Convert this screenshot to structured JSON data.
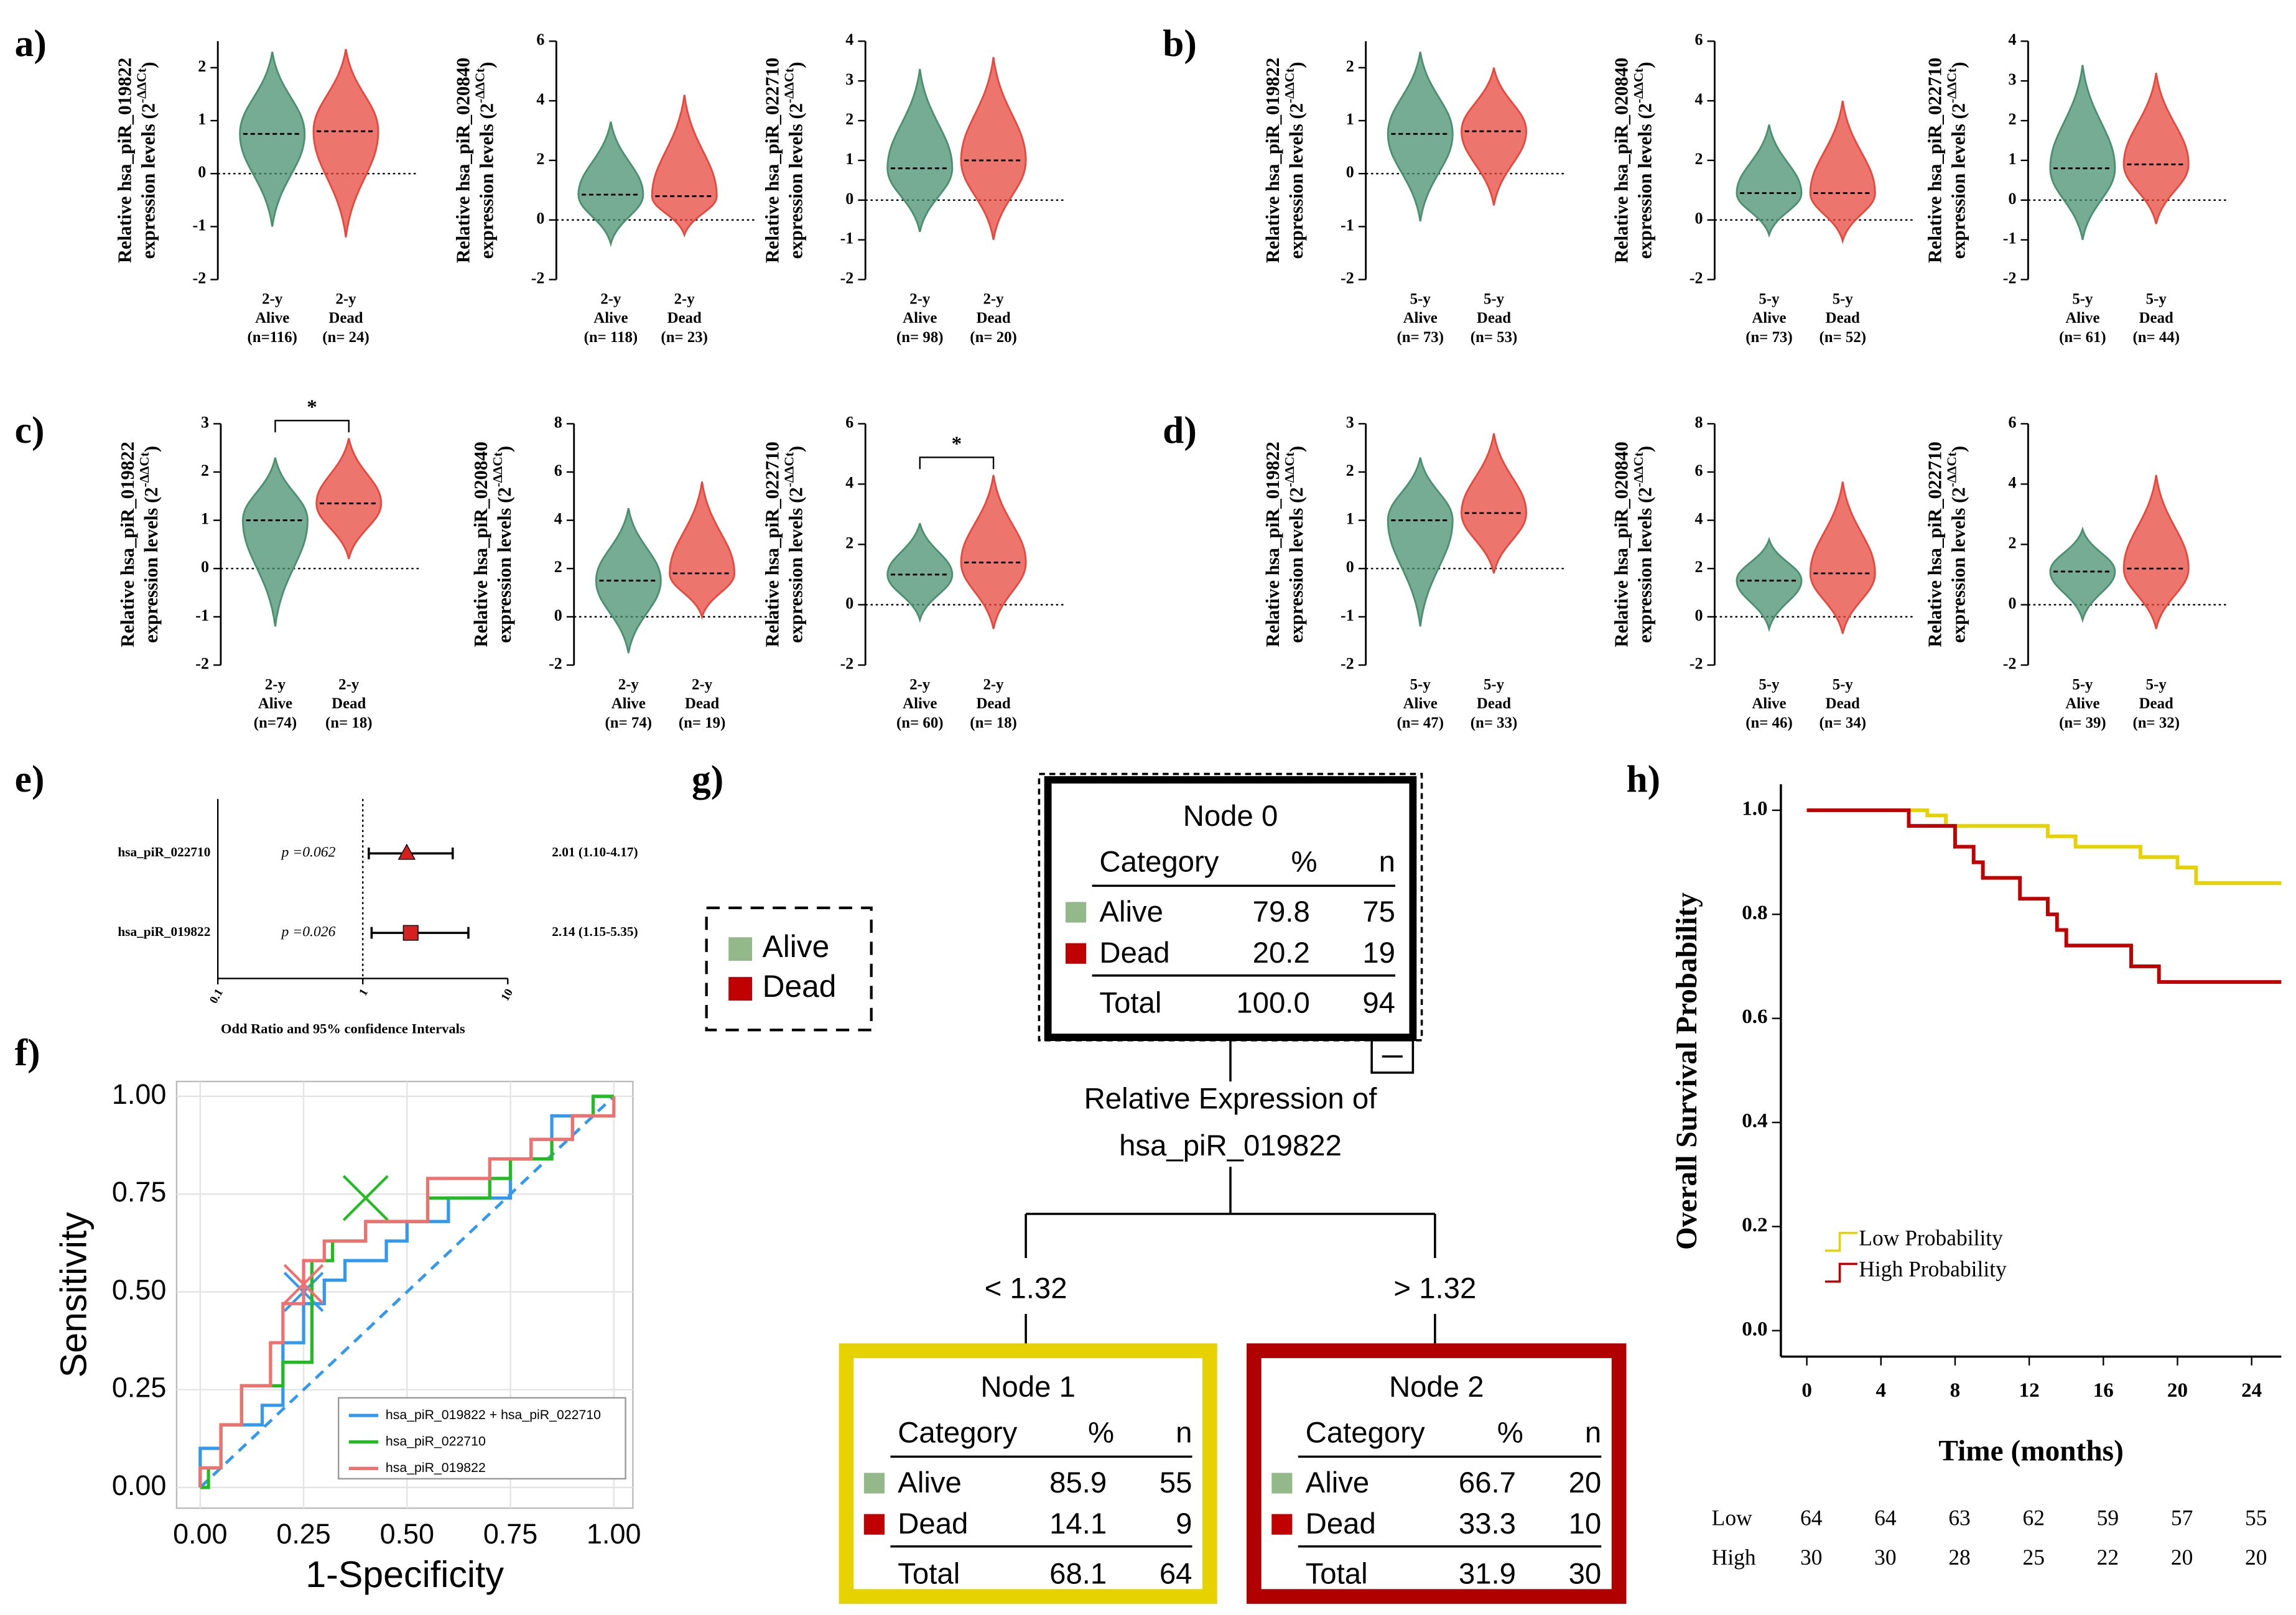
{
  "panel_labels": [
    "a)",
    "b)",
    "c)",
    "d)",
    "e)",
    "f)",
    "g)",
    "h)"
  ],
  "chart_data": [
    {
      "type": "violin",
      "ylabel": [
        "Relative hsa_piR_019822",
        "expression levels (2",
        "-ΔΔCt",
        ")"
      ],
      "ylim": [
        -2,
        2.5
      ],
      "yticks": [
        -2,
        -1,
        0,
        1,
        2
      ],
      "categories": [
        [
          "2-y",
          "Alive",
          "(n=116)"
        ],
        [
          "2-y",
          "Dead",
          "(n= 24)"
        ]
      ],
      "colors": [
        "#4a9070",
        "#e5483c"
      ],
      "median": [
        0.75,
        0.8
      ],
      "min": [
        -1,
        -1.2
      ],
      "max": [
        2.3,
        2.35
      ]
    },
    {
      "type": "violin",
      "ylabel": [
        "Relative hsa_piR_020840",
        "expression levels (2",
        "-ΔΔCt",
        ")"
      ],
      "ylim": [
        -2,
        6
      ],
      "yticks": [
        -2,
        0,
        2,
        4,
        6
      ],
      "categories": [
        [
          "2-y",
          "Alive",
          "(n= 118)"
        ],
        [
          "2-y",
          "Dead",
          "(n= 23)"
        ]
      ],
      "colors": [
        "#4a9070",
        "#e5483c"
      ],
      "median": [
        0.85,
        0.8
      ],
      "min": [
        -0.8,
        -0.5
      ],
      "max": [
        3.3,
        4.2
      ]
    },
    {
      "type": "violin",
      "ylabel": [
        "Relative hsa_piR_022710",
        "expression levels (2",
        "-ΔΔCt",
        ")"
      ],
      "ylim": [
        -2,
        4
      ],
      "yticks": [
        -2,
        -1,
        0,
        1,
        2,
        3,
        4
      ],
      "categories": [
        [
          "2-y",
          "Alive",
          "(n= 98)"
        ],
        [
          "2-y",
          "Dead",
          "(n= 20)"
        ]
      ],
      "colors": [
        "#4a9070",
        "#e5483c"
      ],
      "median": [
        0.8,
        1.0
      ],
      "min": [
        -0.8,
        -1
      ],
      "max": [
        3.3,
        3.6
      ]
    },
    {
      "type": "violin",
      "ylabel": [
        "Relative hsa_piR_019822",
        "expression levels (2",
        "-ΔΔCt",
        ")"
      ],
      "ylim": [
        -2,
        2.5
      ],
      "yticks": [
        -2,
        -1,
        0,
        1,
        2
      ],
      "categories": [
        [
          "5-y",
          "Alive",
          "(n= 73)"
        ],
        [
          "5-y",
          "Dead",
          "(n= 53)"
        ]
      ],
      "colors": [
        "#4a9070",
        "#e5483c"
      ],
      "median": [
        0.75,
        0.8
      ],
      "min": [
        -0.9,
        -0.6
      ],
      "max": [
        2.3,
        2.0
      ]
    },
    {
      "type": "violin",
      "ylabel": [
        "Relative hsa_piR_020840",
        "expression levels (2",
        "-ΔΔCt",
        ")"
      ],
      "ylim": [
        -2,
        6
      ],
      "yticks": [
        -2,
        0,
        2,
        4,
        6
      ],
      "categories": [
        [
          "5-y",
          "Alive",
          "(n= 73)"
        ],
        [
          "5-y",
          "Dead",
          "(n= 52)"
        ]
      ],
      "colors": [
        "#4a9070",
        "#e5483c"
      ],
      "median": [
        0.9,
        0.9
      ],
      "min": [
        -0.5,
        -0.7
      ],
      "max": [
        3.2,
        4.0
      ]
    },
    {
      "type": "violin",
      "ylabel": [
        "Relative hsa_piR_022710",
        "expression levels (2",
        "-ΔΔCt",
        ")"
      ],
      "ylim": [
        -2,
        4
      ],
      "yticks": [
        -2,
        -1,
        0,
        1,
        2,
        3,
        4
      ],
      "categories": [
        [
          "5-y",
          "Alive",
          "(n= 61)"
        ],
        [
          "5-y",
          "Dead",
          "(n= 44)"
        ]
      ],
      "colors": [
        "#4a9070",
        "#e5483c"
      ],
      "median": [
        0.8,
        0.9
      ],
      "min": [
        -1,
        -0.6
      ],
      "max": [
        3.4,
        3.2
      ]
    },
    {
      "type": "violin",
      "ylabel": [
        "Relative hsa_piR_019822",
        "expression levels (2",
        "-ΔΔCt",
        ")"
      ],
      "ylim": [
        -2,
        3
      ],
      "yticks": [
        -2,
        -1,
        0,
        1,
        2,
        3
      ],
      "categories": [
        [
          "2-y",
          "Alive",
          "(n=74)"
        ],
        [
          "2-y",
          "Dead",
          "(n= 18)"
        ]
      ],
      "colors": [
        "#4a9070",
        "#e5483c"
      ],
      "median": [
        1.0,
        1.35
      ],
      "min": [
        -1.2,
        0.2
      ],
      "max": [
        2.3,
        2.7
      ],
      "significance": "*"
    },
    {
      "type": "violin",
      "ylabel": [
        "Relative hsa_piR_020840",
        "expression levels (2",
        "-ΔΔCt",
        ")"
      ],
      "ylim": [
        -2,
        8
      ],
      "yticks": [
        -2,
        0,
        2,
        4,
        6,
        8
      ],
      "categories": [
        [
          "2-y",
          "Alive",
          "(n= 74)"
        ],
        [
          "2-y",
          "Dead",
          "(n= 19)"
        ]
      ],
      "colors": [
        "#4a9070",
        "#e5483c"
      ],
      "median": [
        1.5,
        1.8
      ],
      "min": [
        -1.5,
        0
      ],
      "max": [
        4.5,
        5.6
      ]
    },
    {
      "type": "violin",
      "ylabel": [
        "Relative hsa_piR_022710",
        "expression levels (2",
        "-ΔΔCt",
        ")"
      ],
      "ylim": [
        -2,
        6
      ],
      "yticks": [
        -2,
        0,
        2,
        4,
        6
      ],
      "categories": [
        [
          "2-y",
          "Alive",
          "(n= 60)"
        ],
        [
          "2-y",
          "Dead",
          "(n= 18)"
        ]
      ],
      "colors": [
        "#4a9070",
        "#e5483c"
      ],
      "median": [
        1.0,
        1.4
      ],
      "min": [
        -0.5,
        -0.8
      ],
      "max": [
        2.7,
        4.3
      ],
      "significance": "*"
    },
    {
      "type": "violin",
      "ylabel": [
        "Relative hsa_piR_019822",
        "expression levels (2",
        "-ΔΔCt",
        ")"
      ],
      "ylim": [
        -2,
        3
      ],
      "yticks": [
        -2,
        -1,
        0,
        1,
        2,
        3
      ],
      "categories": [
        [
          "5-y",
          "Alive",
          "(n= 47)"
        ],
        [
          "5-y",
          "Dead",
          "(n= 33)"
        ]
      ],
      "colors": [
        "#4a9070",
        "#e5483c"
      ],
      "median": [
        1.0,
        1.15
      ],
      "min": [
        -1.2,
        -0.1
      ],
      "max": [
        2.3,
        2.8
      ]
    },
    {
      "type": "violin",
      "ylabel": [
        "Relative hsa_piR_020840",
        "expression levels (2",
        "-ΔΔCt",
        ")"
      ],
      "ylim": [
        -2,
        8
      ],
      "yticks": [
        -2,
        0,
        2,
        4,
        6,
        8
      ],
      "categories": [
        [
          "5-y",
          "Alive",
          "(n= 46)"
        ],
        [
          "5-y",
          "Dead",
          "(n= 34)"
        ]
      ],
      "colors": [
        "#4a9070",
        "#e5483c"
      ],
      "median": [
        1.5,
        1.8
      ],
      "min": [
        -0.5,
        -0.7
      ],
      "max": [
        3.2,
        5.6
      ]
    },
    {
      "type": "violin",
      "ylabel": [
        "Relative hsa_piR_022710",
        "expression levels (2",
        "-ΔΔCt",
        ")"
      ],
      "ylim": [
        -2,
        6
      ],
      "yticks": [
        -2,
        0,
        2,
        4,
        6
      ],
      "categories": [
        [
          "5-y",
          "Alive",
          "(n= 39)"
        ],
        [
          "5-y",
          "Dead",
          "(n= 32)"
        ]
      ],
      "colors": [
        "#4a9070",
        "#e5483c"
      ],
      "median": [
        1.1,
        1.2
      ],
      "min": [
        -0.5,
        -0.8
      ],
      "max": [
        2.5,
        4.3
      ]
    },
    {
      "type": "forest",
      "xlabel": "Odd Ratio and 95% confidence Intervals",
      "log": true,
      "xlim": [
        0.1,
        10
      ],
      "xticks": [
        0.1,
        1,
        10
      ],
      "reference": 1,
      "color": "#d42020",
      "categories": [
        "hsa_piR_022710",
        "hsa_piR_019822"
      ],
      "markers": [
        "triangle",
        "square"
      ],
      "values": [
        2.01,
        2.14
      ],
      "lower": [
        1.1,
        1.15
      ],
      "upper": [
        4.17,
        5.35
      ],
      "value_labels": [
        "2.01 (1.10-4.17)",
        "2.14 (1.15-5.35)"
      ],
      "p_labels": [
        "p =0.062",
        "p =0.026"
      ]
    },
    {
      "type": "roc",
      "xlabel": "1-Specificity",
      "ylabel": "Sensitivity",
      "grid": true,
      "xlim": [
        -0.057,
        1.046
      ],
      "ylim": [
        -0.053,
        1.038
      ],
      "xticks": [
        {
          "value": 0,
          "label": "0.00"
        },
        0.25,
        {
          "value": 0.5,
          "label": "0.50"
        },
        0.75,
        {
          "value": 1,
          "label": "1.00"
        }
      ],
      "yticks": [
        {
          "value": 0,
          "label": "0.00"
        },
        0.25,
        {
          "value": 0.5,
          "label": "0.50"
        },
        0.75,
        {
          "value": 1,
          "label": "1.00"
        }
      ],
      "series": [
        {
          "name": "hsa_piR_019822 + hsa_piR_022710",
          "color": "#3399ee",
          "cutoff_x": 0.25,
          "cutoff_y": 0.5,
          "x": [
            0,
            0,
            0.05,
            0.05,
            0.15,
            0.15,
            0.2,
            0.2,
            0.25,
            0.25,
            0.3,
            0.3,
            0.35,
            0.35,
            0.45,
            0.45,
            0.5,
            0.5,
            0.6,
            0.6,
            0.75,
            0.75,
            0.8,
            0.8,
            0.85,
            0.85,
            0.95,
            0.95,
            1
          ],
          "y": [
            0,
            0.1,
            0.1,
            0.16,
            0.16,
            0.21,
            0.21,
            0.37,
            0.37,
            0.47,
            0.47,
            0.53,
            0.53,
            0.58,
            0.58,
            0.63,
            0.63,
            0.68,
            0.68,
            0.74,
            0.74,
            0.84,
            0.84,
            0.89,
            0.89,
            0.95,
            0.95,
            1,
            1
          ]
        },
        {
          "name": "hsa_piR_022710",
          "color": "#22bb22",
          "cutoff_x": 0.4,
          "cutoff_y": 0.74,
          "x": [
            0,
            0.02,
            0.02,
            0.05,
            0.05,
            0.1,
            0.1,
            0.2,
            0.2,
            0.27,
            0.27,
            0.32,
            0.32,
            0.4,
            0.4,
            0.55,
            0.55,
            0.7,
            0.7,
            0.75,
            0.75,
            0.85,
            0.85,
            0.9,
            0.9,
            0.95,
            0.95,
            1
          ],
          "y": [
            0,
            0,
            0.05,
            0.05,
            0.16,
            0.16,
            0.26,
            0.26,
            0.32,
            0.32,
            0.58,
            0.58,
            0.63,
            0.63,
            0.68,
            0.68,
            0.74,
            0.74,
            0.79,
            0.79,
            0.84,
            0.84,
            0.89,
            0.89,
            0.95,
            0.95,
            1,
            1
          ]
        },
        {
          "name": "hsa_piR_019822",
          "color": "#f07070",
          "cutoff_x": 0.25,
          "cutoff_y": 0.52,
          "x": [
            0,
            0,
            0.05,
            0.05,
            0.1,
            0.1,
            0.17,
            0.17,
            0.2,
            0.2,
            0.25,
            0.25,
            0.3,
            0.3,
            0.4,
            0.4,
            0.55,
            0.55,
            0.7,
            0.7,
            0.8,
            0.8,
            0.9,
            0.9,
            1,
            1
          ],
          "y": [
            0,
            0.05,
            0.05,
            0.16,
            0.16,
            0.26,
            0.26,
            0.37,
            0.37,
            0.47,
            0.47,
            0.58,
            0.58,
            0.63,
            0.63,
            0.68,
            0.68,
            0.79,
            0.79,
            0.84,
            0.84,
            0.89,
            0.89,
            0.95,
            0.95,
            1
          ]
        }
      ]
    },
    {
      "type": "tree",
      "legend": [
        {
          "name": "Alive",
          "color": "#93b88a"
        },
        {
          "name": "Dead",
          "color": "#c00000"
        }
      ],
      "nodes": [
        {
          "title": "Node 0",
          "headers": [
            "Category",
            "%",
            "n"
          ],
          "rows": [
            [
              "Alive",
              "79.8",
              "75"
            ],
            [
              "Dead",
              "20.2",
              "19"
            ]
          ],
          "total": [
            "Total",
            "100.0",
            "94"
          ],
          "border": "#000000"
        },
        {
          "title": "Node 1",
          "headers": [
            "Category",
            "%",
            "n"
          ],
          "rows": [
            [
              "Alive",
              "85.9",
              "55"
            ],
            [
              "Dead",
              "14.1",
              "9"
            ]
          ],
          "total": [
            "Total",
            "68.1",
            "64"
          ],
          "border": "#e6d200"
        },
        {
          "title": "Node 2",
          "headers": [
            "Category",
            "%",
            "n"
          ],
          "rows": [
            [
              "Alive",
              "66.7",
              "20"
            ],
            [
              "Dead",
              "33.3",
              "10"
            ]
          ],
          "total": [
            "Total",
            "31.9",
            "30"
          ],
          "border": "#b00000"
        }
      ],
      "split_label": [
        "Relative Expression of",
        "hsa_piR_019822"
      ],
      "branches": [
        "< 1.32",
        "> 1.32"
      ]
    },
    {
      "type": "km",
      "xlabel": "Time (months)",
      "ylabel": "Overall Survival Probability",
      "xlim": [
        -1.4,
        25.6
      ],
      "ylim": [
        -0.05,
        1.05
      ],
      "xticks": [
        0,
        4,
        8,
        12,
        16,
        20,
        24
      ],
      "yticks": [
        {
          "value": 0,
          "label": "0.0"
        },
        0.2,
        0.4,
        0.6,
        0.8,
        {
          "value": 1,
          "label": "1.0"
        }
      ],
      "series": [
        {
          "name": "Low Probability",
          "color": "#e6d200",
          "x": [
            0,
            6.5,
            6.5,
            7.5,
            7.5,
            13,
            13,
            14.5,
            14.5,
            18,
            18,
            20,
            20,
            21,
            21,
            25.6
          ],
          "values": [
            1,
            1,
            0.99,
            0.99,
            0.97,
            0.97,
            0.95,
            0.95,
            0.93,
            0.93,
            0.91,
            0.91,
            0.89,
            0.89,
            0.86,
            0.86
          ]
        },
        {
          "name": "High Probability",
          "color": "#c00000",
          "x": [
            0,
            5.5,
            5.5,
            8,
            8,
            9,
            9,
            9.5,
            9.5,
            11.5,
            11.5,
            13,
            13,
            13.5,
            13.5,
            14,
            14,
            17.5,
            17.5,
            19,
            19,
            25.6
          ],
          "values": [
            1,
            1,
            0.97,
            0.97,
            0.93,
            0.93,
            0.9,
            0.9,
            0.87,
            0.87,
            0.83,
            0.83,
            0.8,
            0.8,
            0.77,
            0.77,
            0.74,
            0.74,
            0.7,
            0.7,
            0.67,
            0.67
          ]
        }
      ],
      "risk_table": {
        "rows": [
          "Low",
          "High"
        ],
        "values": [
          [
            64,
            64,
            63,
            62,
            59,
            57,
            55
          ],
          [
            30,
            30,
            28,
            25,
            22,
            20,
            20
          ]
        ]
      }
    }
  ]
}
